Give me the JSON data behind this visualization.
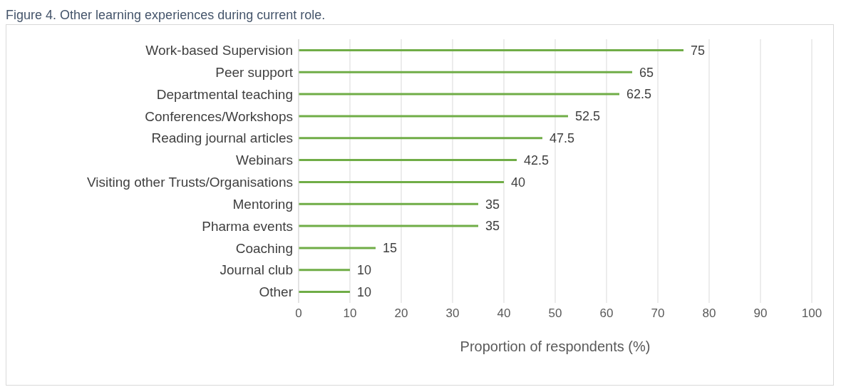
{
  "chart_data": {
    "type": "bar",
    "orientation": "horizontal",
    "title": "Figure 4. Other learning experiences during current role.",
    "xlabel": "Proportion of respondents (%)",
    "categories": [
      "Work-based Supervision",
      "Peer support",
      "Departmental teaching",
      "Conferences/Workshops",
      "Reading journal articles",
      "Webinars",
      "Visiting other Trusts/Organisations",
      "Mentoring",
      "Pharma events",
      "Coaching",
      "Journal club",
      "Other"
    ],
    "values": [
      75,
      65,
      62.5,
      52.5,
      47.5,
      42.5,
      40,
      35,
      35,
      15,
      10,
      10
    ],
    "color": "#70ad47",
    "xlim": [
      0,
      100
    ],
    "xticks": [
      0,
      10,
      20,
      30,
      40,
      50,
      60,
      70,
      80,
      90,
      100
    ],
    "grid": "x",
    "data_labels": true
  }
}
